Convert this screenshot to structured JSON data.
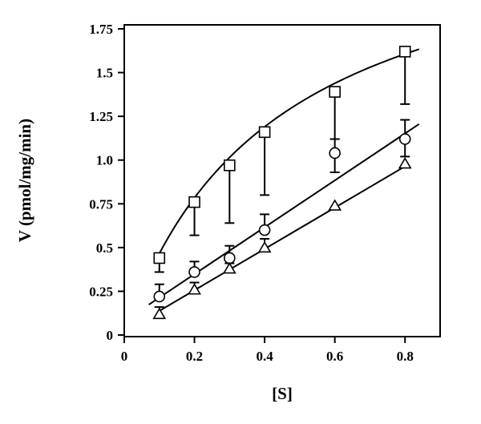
{
  "chart_data": {
    "type": "scatter",
    "xlabel": "[S]",
    "ylabel": "V (pmol/mg/min)",
    "xlim": [
      0,
      0.9
    ],
    "ylim": [
      0,
      1.75
    ],
    "x_ticks": [
      0,
      0.2,
      0.4,
      0.6,
      0.8
    ],
    "x_tick_labels": [
      "0",
      "0.2",
      "0.4",
      "0.6",
      "0.8"
    ],
    "y_ticks": [
      0,
      0.25,
      0.5,
      0.75,
      1.0,
      1.25,
      1.5,
      1.75
    ],
    "y_tick_labels": [
      "0",
      "0.25",
      "0.5",
      "0.75",
      "1.0",
      "1.25",
      "1.5",
      "1.75"
    ],
    "grid": false,
    "legend": "none",
    "series": [
      {
        "marker": "square",
        "x": [
          0.1,
          0.2,
          0.3,
          0.4,
          0.6,
          0.8
        ],
        "y": [
          0.44,
          0.76,
          0.97,
          1.16,
          1.39,
          1.62
        ],
        "error_lower": [
          0.36,
          0.57,
          0.64,
          0.8,
          1.12,
          1.32
        ],
        "fit": "hyperbolic",
        "fit_curve": {
          "vmax": 2.47,
          "km": 0.43,
          "x_range": [
            0.1,
            0.84
          ]
        }
      },
      {
        "marker": "circle",
        "x": [
          0.1,
          0.2,
          0.3,
          0.4,
          0.6,
          0.8
        ],
        "y": [
          0.22,
          0.36,
          0.44,
          0.6,
          1.04,
          1.12
        ],
        "error_upper": [
          0.29,
          0.42,
          0.51,
          0.69,
          1.12,
          1.23
        ],
        "error_lower": [
          null,
          null,
          null,
          null,
          0.93,
          1.02
        ],
        "fit": "linear",
        "fit_line": {
          "slope": 1.34,
          "intercept": 0.08,
          "x_range": [
            0.07,
            0.84
          ]
        }
      },
      {
        "marker": "triangle",
        "x": [
          0.1,
          0.2,
          0.3,
          0.4,
          0.6,
          0.8
        ],
        "y": [
          0.12,
          0.26,
          0.38,
          0.5,
          0.74,
          0.98
        ],
        "error_upper": [
          0.16,
          0.3,
          0.41,
          0.55,
          null,
          null
        ],
        "fit": "linear",
        "fit_line": {
          "slope": 1.18,
          "intercept": 0.02,
          "x_range": [
            0.1,
            0.8
          ]
        }
      }
    ]
  }
}
